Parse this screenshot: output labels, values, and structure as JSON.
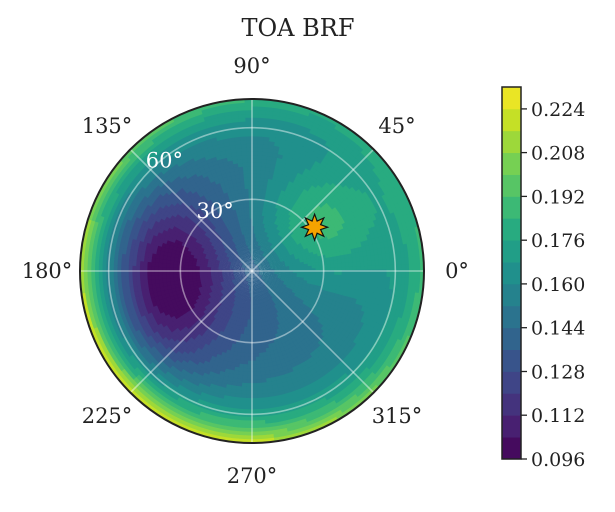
{
  "chart_data": {
    "type": "heatmap",
    "projection": "polar",
    "title": "TOA BRF",
    "theta_tick_labels": [
      "0°",
      "45°",
      "90°",
      "135°",
      "180°",
      "225°",
      "270°",
      "315°"
    ],
    "theta_ticks_deg": [
      0,
      45,
      90,
      135,
      180,
      225,
      270,
      315
    ],
    "r_tick_labels": [
      "30°",
      "60°"
    ],
    "r_ticks_deg": [
      30,
      60
    ],
    "r_max_deg": 72,
    "grid": true,
    "colormap": "viridis",
    "colorbar": {
      "tick_labels": [
        "0.096",
        "0.112",
        "0.128",
        "0.144",
        "0.160",
        "0.176",
        "0.192",
        "0.208",
        "0.224"
      ],
      "min": 0.096,
      "max": 0.232,
      "levels": 17,
      "position": "right"
    },
    "field": {
      "background": 0.149,
      "min_value": 0.098,
      "max_value": 0.232,
      "features": [
        {
          "kind": "minimum",
          "azimuth_deg": 180,
          "zenith_deg": 35,
          "value": 0.098
        },
        {
          "kind": "maximum",
          "azimuth_deg": 43,
          "zenith_deg": 20,
          "value": 0.178
        }
      ],
      "edge_value_at_180": 0.176,
      "edge_value_at_225": 0.232
    },
    "marker": {
      "shape": "star",
      "color": "#f5a300",
      "azimuth_deg": 35,
      "zenith_deg": 32,
      "meaning": "sun direction"
    }
  }
}
